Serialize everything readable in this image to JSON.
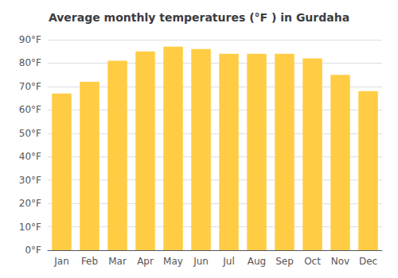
{
  "chart_data": {
    "type": "bar",
    "title": "Average monthly temperatures (°F ) in Gurdaha",
    "categories": [
      "Jan",
      "Feb",
      "Mar",
      "Apr",
      "May",
      "Jun",
      "Jul",
      "Aug",
      "Sep",
      "Oct",
      "Nov",
      "Dec"
    ],
    "values": [
      67,
      72,
      81,
      85,
      87,
      86,
      84,
      84,
      84,
      82,
      75,
      68
    ],
    "color": "#FFCC44",
    "ylim": [
      0,
      90
    ],
    "yticks": [
      {
        "value": 0,
        "label": "0°F"
      },
      {
        "value": 10,
        "label": "10°F"
      },
      {
        "value": 20,
        "label": "20°F"
      },
      {
        "value": 30,
        "label": "30°F"
      },
      {
        "value": 40,
        "label": "40°F"
      },
      {
        "value": 50,
        "label": "50°F"
      },
      {
        "value": 60,
        "label": "60°F"
      },
      {
        "value": 70,
        "label": "70°F"
      },
      {
        "value": 80,
        "label": "80°F"
      },
      {
        "value": 90,
        "label": "90°F"
      }
    ],
    "grid": true
  }
}
